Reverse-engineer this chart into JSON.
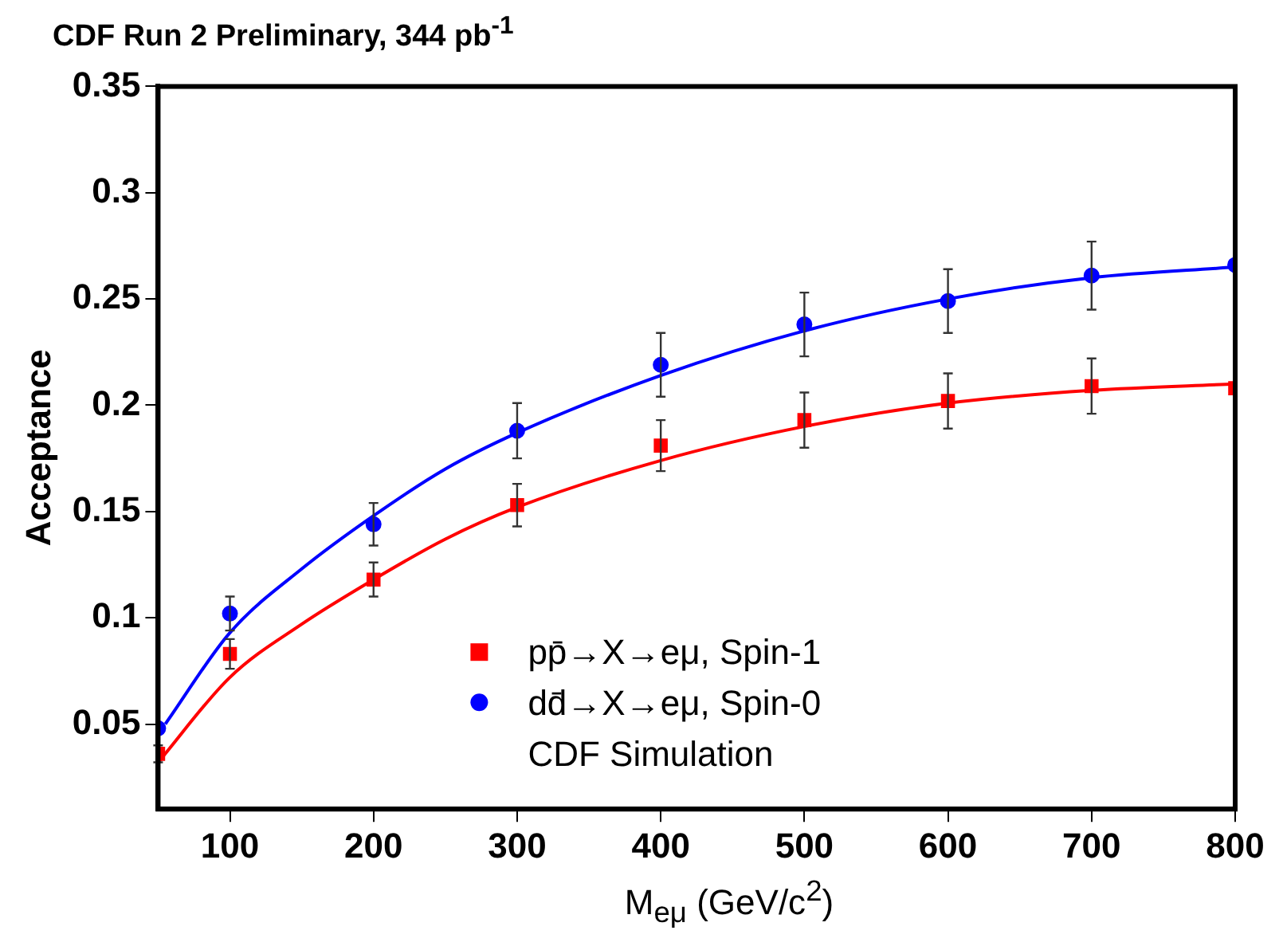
{
  "chart_data": {
    "type": "scatter",
    "title": "CDF Run 2 Preliminary, 344 pb$^{-1}$",
    "xlabel": "M$_{eμ}$ (GeV/c$^{2}$)",
    "ylabel": "Acceptance",
    "xlim": [
      50,
      800
    ],
    "xticks": [
      100,
      200,
      300,
      400,
      500,
      600,
      700,
      800
    ],
    "ylim": [
      0.01,
      0.35
    ],
    "yticks": [
      0.05,
      0.1,
      0.15,
      0.2,
      0.25,
      0.3,
      0.35
    ],
    "grid": false,
    "legend": "bottom",
    "annotations": [
      "CDF Simulation"
    ],
    "series": [
      {
        "name": "pp̄→X→eμ, Spin-1",
        "marker": "square",
        "color": "#ff0000",
        "x": [
          50,
          100,
          200,
          300,
          400,
          500,
          600,
          700,
          800
        ],
        "values": [
          0.036,
          0.083,
          0.118,
          0.153,
          0.181,
          0.193,
          0.202,
          0.209,
          0.208
        ],
        "errors": [
          0.004,
          0.007,
          0.008,
          0.01,
          0.012,
          0.013,
          0.013,
          0.013,
          null
        ]
      },
      {
        "name": "dd̄→X→eμ, Spin-0",
        "marker": "circle",
        "color": "#0000ff",
        "x": [
          50,
          100,
          200,
          300,
          400,
          500,
          600,
          700,
          800
        ],
        "values": [
          0.048,
          0.102,
          0.144,
          0.188,
          0.219,
          0.238,
          0.249,
          0.261,
          0.266
        ],
        "errors": [
          null,
          0.008,
          0.01,
          0.013,
          0.015,
          0.015,
          0.015,
          0.016,
          null
        ]
      },
      {
        "type": "line",
        "marker": "none",
        "color": "#ff0000",
        "x": [
          50,
          100,
          150,
          200,
          250,
          300,
          400,
          500,
          600,
          700,
          800
        ],
        "values": [
          0.032,
          0.072,
          0.097,
          0.118,
          0.137,
          0.152,
          0.174,
          0.19,
          0.201,
          0.207,
          0.21
        ]
      },
      {
        "type": "line",
        "marker": "none",
        "color": "#0000ff",
        "x": [
          55,
          100,
          150,
          200,
          250,
          300,
          400,
          500,
          600,
          700,
          800
        ],
        "values": [
          0.05,
          0.093,
          0.123,
          0.148,
          0.17,
          0.187,
          0.214,
          0.235,
          0.25,
          0.26,
          0.265
        ]
      }
    ]
  }
}
